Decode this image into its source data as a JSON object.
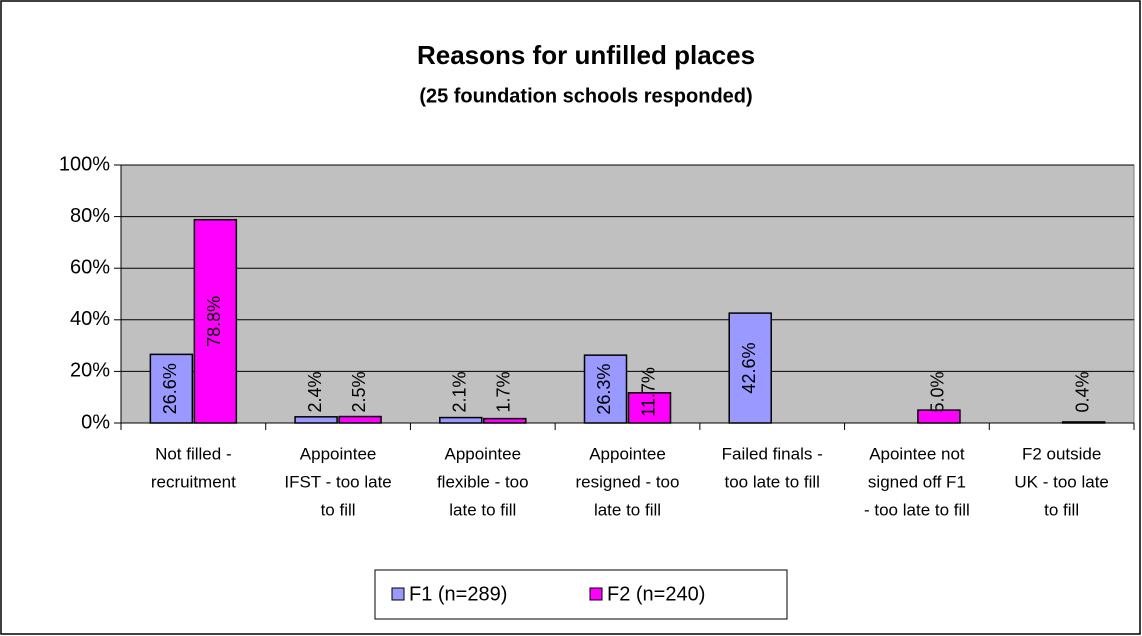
{
  "chart_data": {
    "type": "bar",
    "title": "Reasons for unfilled places",
    "subtitle": "(25 foundation schools responded)",
    "categories": [
      [
        "Not filled -",
        "recruitment"
      ],
      [
        "Appointee",
        "IFST - too late",
        "to fill"
      ],
      [
        "Appointee",
        "flexible - too",
        "late to fill"
      ],
      [
        "Appointee",
        "resigned - too",
        "late to fill"
      ],
      [
        "Failed finals -",
        "too late to fill"
      ],
      [
        "Apointee not",
        "signed off F1",
        "- too late to fill"
      ],
      [
        "F2 outside",
        "UK - too late",
        "to fill"
      ]
    ],
    "series": [
      {
        "name": "F1 (n=289)",
        "color": "#9999ff",
        "values": [
          26.6,
          2.4,
          2.1,
          26.3,
          42.6,
          null,
          null
        ],
        "value_labels": [
          "26.6%",
          "2.4%",
          "2.1%",
          "26.3%",
          "42.6%",
          null,
          null
        ]
      },
      {
        "name": "F2 (n=240)",
        "color": "#ff00ff",
        "values": [
          78.8,
          2.5,
          1.7,
          11.7,
          null,
          5.0,
          0.4
        ],
        "value_labels": [
          "78.8%",
          "2.5%",
          "1.7%",
          "11.7%",
          null,
          "5.0%",
          "0.4%"
        ]
      }
    ],
    "ylim": [
      0,
      100
    ],
    "yticks": [
      {
        "value": 0,
        "label": "0%"
      },
      {
        "value": 20,
        "label": "20%"
      },
      {
        "value": 40,
        "label": "40%"
      },
      {
        "value": 60,
        "label": "60%"
      },
      {
        "value": 80,
        "label": "80%"
      },
      {
        "value": 100,
        "label": "100%"
      }
    ],
    "grid": true,
    "legend": "bottom"
  }
}
